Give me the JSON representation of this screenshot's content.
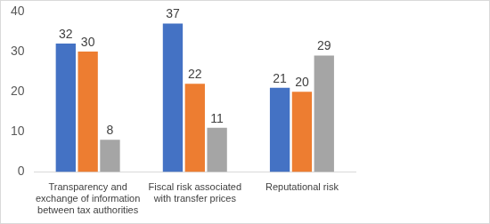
{
  "chart_data": {
    "type": "bar",
    "categories": [
      "Transparency and exchange of information between tax authorities",
      "Fiscal risk associated with transfer prices",
      "Reputational risk"
    ],
    "series": [
      {
        "color": "#4472c4",
        "values": [
          32,
          37,
          21
        ]
      },
      {
        "color": "#ed7d31",
        "values": [
          30,
          22,
          20
        ]
      },
      {
        "color": "#a5a5a5",
        "values": [
          8,
          11,
          29
        ]
      }
    ],
    "ylim": [
      0,
      40
    ],
    "yticks": [
      0,
      10,
      20,
      30,
      40
    ],
    "grid": false,
    "data_labels": true
  }
}
